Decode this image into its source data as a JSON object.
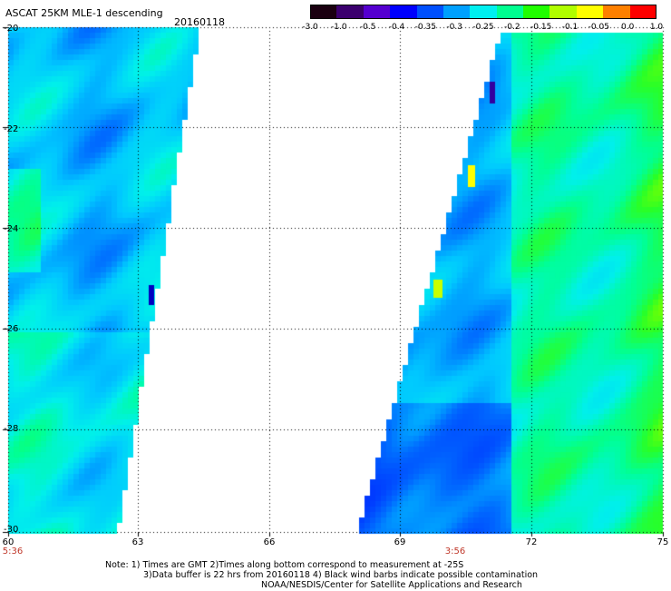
{
  "header": {
    "title": "ASCAT 25KM MLE-1 descending",
    "date": "20160118"
  },
  "colorbar": {
    "labels": [
      "-3.0",
      "-1.0",
      "-0.5",
      "-0.4",
      "-0.35",
      "-0.3",
      "-0.25",
      "-0.2",
      "-0.15",
      "-0.1",
      "-0.05",
      "0.0",
      "1.0"
    ],
    "colors": [
      "#1a0010",
      "#3b006e",
      "#5500d0",
      "#0000ff",
      "#0050ff",
      "#00a0ff",
      "#00f0f0",
      "#00ff90",
      "#20ff00",
      "#b0ff00",
      "#ffff00",
      "#ff8000",
      "#ff0000"
    ]
  },
  "axes": {
    "lat_labels": [
      "-20",
      "-22",
      "-24",
      "-26",
      "-28",
      "-30"
    ],
    "lon_labels": [
      "60",
      "63",
      "66",
      "69",
      "72",
      "75"
    ],
    "lat_range": [
      -30,
      -20
    ],
    "lon_range": [
      60,
      75
    ]
  },
  "times": [
    {
      "label": "5:36",
      "lon": 60
    },
    {
      "label": "3:56",
      "lon": 70.2
    }
  ],
  "notes": {
    "line1": "Note: 1) Times are GMT 2)Times along bottom correspond to measurement at -25S",
    "line2": "3)Data buffer is 22 hrs from 20160118 4) Black wind barbs indicate possible contamination",
    "line3": "NOAA/NESDIS/Center for Satellite Applications and Research"
  }
}
